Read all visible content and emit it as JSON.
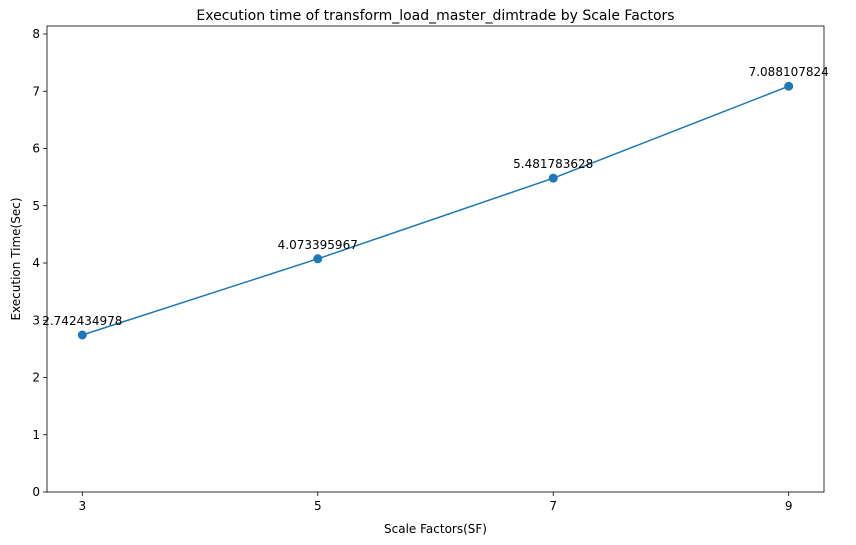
{
  "chart_data": {
    "type": "line",
    "title": "Execution time of transform_load_master_dimtrade by Scale Factors",
    "xlabel": "Scale Factors(SF)",
    "ylabel": "Execution Time(Sec)",
    "x": [
      3,
      5,
      7,
      9
    ],
    "x_tick_labels": [
      "3",
      "5",
      "7",
      "9"
    ],
    "series": [
      {
        "values": [
          2.742434978,
          4.073395967,
          5.481783628,
          7.088107824
        ],
        "data_labels": [
          "2.742434978",
          "4.073395967",
          "5.481783628",
          "7.088107824"
        ],
        "color": "#1f77b4",
        "marker": "circle"
      }
    ],
    "y_ticks": [
      0,
      1,
      2,
      3,
      4,
      5,
      6,
      7,
      8
    ],
    "y_tick_labels": [
      "0",
      "1",
      "2",
      "3",
      "4",
      "5",
      "6",
      "7",
      "8"
    ],
    "xlim": [
      2.7,
      9.3
    ],
    "ylim": [
      0,
      8.14
    ],
    "grid": false,
    "legend": "none"
  }
}
